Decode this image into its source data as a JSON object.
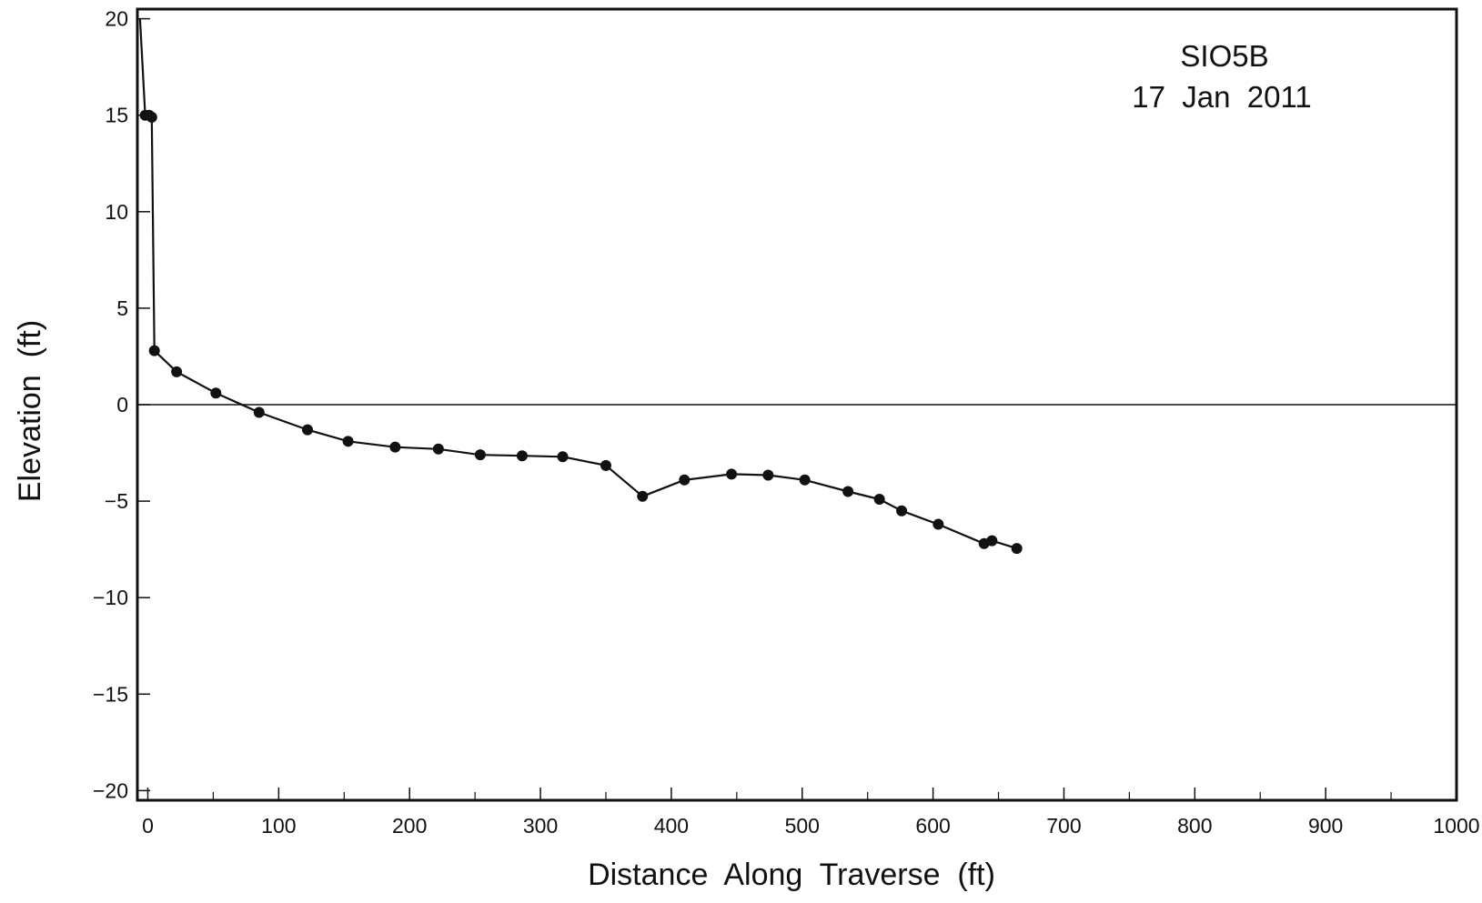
{
  "chart_data": {
    "type": "line",
    "title": "",
    "annotation": [
      "SIO5B",
      "17  Jan  2011"
    ],
    "xlabel": "Distance  Along  Traverse  (ft)",
    "ylabel": "Elevation  (ft)",
    "xlim": [
      -8,
      1000
    ],
    "ylim": [
      -20.5,
      20.5
    ],
    "xticks": [
      0,
      100,
      200,
      300,
      400,
      500,
      600,
      700,
      800,
      900,
      1000
    ],
    "xtick_labels": [
      "0",
      "100",
      "200",
      "300",
      "400",
      "500",
      "600",
      "700",
      "800",
      "900",
      "1000"
    ],
    "yticks": [
      20,
      15,
      10,
      5,
      0,
      -5,
      -10,
      -15,
      -20
    ],
    "ytick_labels": [
      "20",
      "15",
      "10",
      "5",
      "0",
      "−05",
      "−10",
      "−15",
      "−20"
    ],
    "zero_line": true,
    "grid": false,
    "series": [
      {
        "x": [
          -6,
          -2,
          1,
          3,
          5,
          22,
          52,
          85,
          122,
          153,
          189,
          222,
          254,
          286,
          317,
          350,
          378,
          410,
          446,
          474,
          502,
          535,
          559,
          576,
          604,
          639,
          645,
          664
        ],
        "y": [
          20,
          15.0,
          15.0,
          14.9,
          2.8,
          1.7,
          0.6,
          -0.4,
          -1.3,
          -1.9,
          -2.2,
          -2.3,
          -2.6,
          -2.65,
          -2.7,
          -3.15,
          -4.75,
          -3.9,
          -3.6,
          -3.65,
          -3.9,
          -4.5,
          -4.9,
          -5.5,
          -6.2,
          -7.2,
          -7.05,
          -7.45
        ],
        "markers": [
          false,
          true,
          true,
          true,
          true,
          true,
          true,
          true,
          true,
          true,
          true,
          true,
          true,
          true,
          true,
          true,
          true,
          true,
          true,
          true,
          true,
          true,
          true,
          true,
          true,
          true,
          true,
          true
        ],
        "color": "#111111"
      }
    ]
  }
}
